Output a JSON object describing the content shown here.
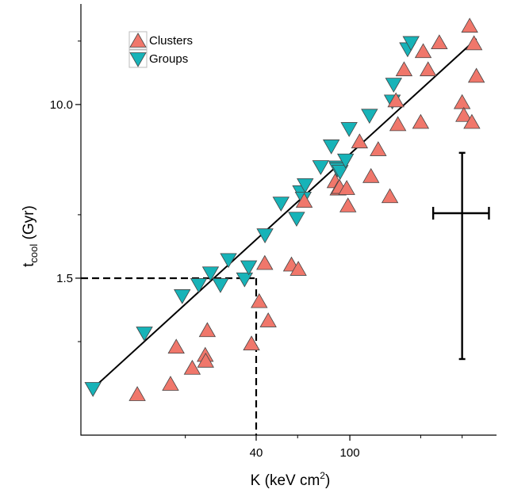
{
  "chart_data": {
    "type": "scatter",
    "x_scale": "log",
    "y_scale": "log",
    "xlabel": "K (keV cm²)",
    "ylabel": "tcool (Gyr)",
    "ylabel_main": "t",
    "ylabel_sub": "cool",
    "ylabel_unit": " (Gyr)",
    "xlabel_main": "K (keV cm",
    "xlabel_sup": "2",
    "xlabel_close": ")",
    "xlim": [
      7.2,
      420
    ],
    "ylim": [
      0.27,
      30
    ],
    "x_ticks": [
      {
        "value": 40,
        "label": "40"
      },
      {
        "value": 100,
        "label": "100"
      }
    ],
    "y_ticks": [
      {
        "value": 1.5,
        "label": "1.5"
      },
      {
        "value": 10.0,
        "label": "10.0"
      }
    ],
    "x_minor_ticks": [
      20,
      60,
      200,
      300
    ],
    "y_minor_ticks": [
      0.75,
      3,
      20
    ],
    "legend": {
      "position": "top-left",
      "entries": [
        "Clusters",
        "Groups"
      ]
    },
    "series": [
      {
        "name": "Clusters",
        "marker": "triangle-up",
        "color": "#f0776b",
        "points": [
          [
            12.5,
            0.42
          ],
          [
            17.3,
            0.47
          ],
          [
            18.3,
            0.705
          ],
          [
            21.4,
            0.56
          ],
          [
            24.3,
            0.645
          ],
          [
            24.4,
            0.605
          ],
          [
            24.8,
            0.845
          ],
          [
            38.2,
            0.73
          ],
          [
            41.2,
            1.16
          ],
          [
            43.5,
            1.76
          ],
          [
            45,
            0.94
          ],
          [
            56.5,
            1.73
          ],
          [
            60.4,
            1.65
          ],
          [
            64,
            3.47
          ],
          [
            86.6,
            4.3
          ],
          [
            89.1,
            3.97
          ],
          [
            90.4,
            4.04
          ],
          [
            97,
            3.99
          ],
          [
            98.2,
            3.3
          ],
          [
            110,
            6.64
          ],
          [
            123,
            4.55
          ],
          [
            132,
            6.1
          ],
          [
            148,
            3.65
          ],
          [
            157,
            10.4
          ],
          [
            160,
            8.02
          ],
          [
            170,
            14.6
          ],
          [
            200,
            8.22
          ],
          [
            205,
            17.8
          ],
          [
            215,
            14.6
          ],
          [
            240,
            19.6
          ],
          [
            300,
            10.2
          ],
          [
            305,
            8.87
          ],
          [
            323,
            23.5
          ],
          [
            330,
            8.22
          ],
          [
            337,
            19.4
          ],
          [
            345,
            13.6
          ]
        ]
      },
      {
        "name": "Groups",
        "marker": "triangle-down",
        "color": "#17b3b8",
        "points": [
          [
            8.1,
            0.45
          ],
          [
            13.4,
            0.825
          ],
          [
            19.4,
            1.24
          ],
          [
            22.8,
            1.4
          ],
          [
            25.6,
            1.59
          ],
          [
            28.2,
            1.4
          ],
          [
            30.5,
            1.84
          ],
          [
            35.7,
            1.49
          ],
          [
            37.2,
            1.7
          ],
          [
            43.6,
            2.41
          ],
          [
            51,
            3.41
          ],
          [
            59.4,
            2.89
          ],
          [
            61.8,
            3.86
          ],
          [
            63.4,
            3.6
          ],
          [
            64.6,
            4.17
          ],
          [
            75.2,
            5.08
          ],
          [
            83.4,
            6.37
          ],
          [
            88.1,
            5.06
          ],
          [
            88.5,
            4.95
          ],
          [
            90.9,
            4.82
          ],
          [
            95.9,
            5.46
          ],
          [
            99.3,
            7.7
          ],
          [
            121.2,
            8.9
          ],
          [
            151.5,
            10.4
          ],
          [
            153.5,
            12.5
          ],
          [
            176,
            18.4
          ],
          [
            182,
            19.7
          ]
        ]
      }
    ],
    "fit_line": {
      "from": [
        8.1,
        0.45
      ],
      "to": [
        345,
        20.5
      ]
    },
    "reference_lines": {
      "x": 40,
      "y": 1.5
    },
    "error_bar": {
      "x": 300,
      "y": 3.05,
      "x_range": [
        226,
        390
      ],
      "y_range": [
        0.62,
        5.9
      ]
    }
  }
}
